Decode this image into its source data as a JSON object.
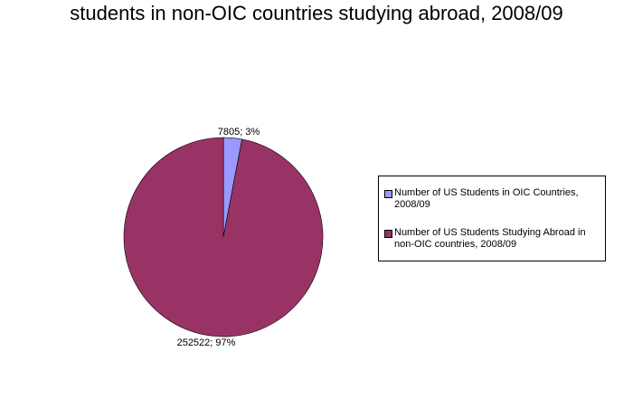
{
  "chart_data": {
    "type": "pie",
    "title": "students in non-OIC countries studying abroad, 2008/09",
    "slices": [
      {
        "name": "Number of US Students in OIC Countries, 2008/09",
        "value": 7805,
        "percent": 3,
        "label": "7805; 3%",
        "color": "#9999ff"
      },
      {
        "name": "Number of US Students Studying Abroad in non-OIC countries, 2008/09",
        "value": 252522,
        "percent": 97,
        "label": "252522; 97%",
        "color": "#993366"
      }
    ],
    "legend_position": "right"
  }
}
